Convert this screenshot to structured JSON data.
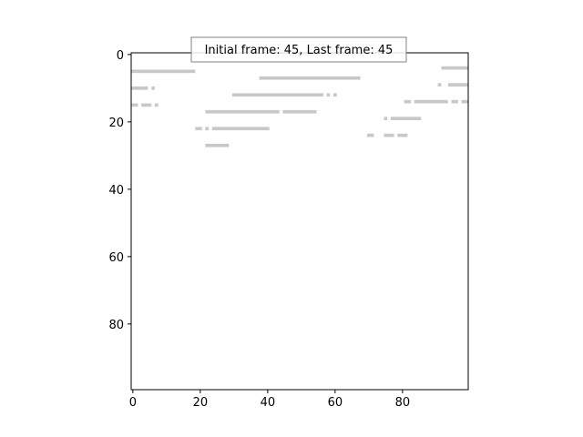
{
  "chart_data": {
    "type": "heatmap",
    "title": "",
    "xlabel": "",
    "ylabel": "",
    "xlim": [
      -0.5,
      99.5
    ],
    "ylim": [
      99.5,
      -0.5
    ],
    "grid": false,
    "y_inverted": true,
    "cell_color": "#c8c8c8",
    "background_color": "#ffffff",
    "x_ticks": [
      {
        "value": 0,
        "label": "0"
      },
      {
        "value": 20,
        "label": "20"
      },
      {
        "value": 40,
        "label": "40"
      },
      {
        "value": 60,
        "label": "60"
      },
      {
        "value": 80,
        "label": "80"
      }
    ],
    "y_ticks": [
      {
        "value": 0,
        "label": "0"
      },
      {
        "value": 20,
        "label": "20"
      },
      {
        "value": 40,
        "label": "40"
      },
      {
        "value": 60,
        "label": "60"
      },
      {
        "value": 80,
        "label": "80"
      }
    ],
    "annotation": {
      "text": "Initial frame: 45, Last frame: 45",
      "placement": "top-center"
    },
    "segments": [
      {
        "row": 0,
        "x_start": 47,
        "x_end": 67
      },
      {
        "row": 4,
        "x_start": 92,
        "x_end": 99
      },
      {
        "row": 5,
        "x_start": 0,
        "x_end": 18
      },
      {
        "row": 7,
        "x_start": 38,
        "x_end": 67
      },
      {
        "row": 9,
        "x_start": 91,
        "x_end": 91
      },
      {
        "row": 9,
        "x_start": 94,
        "x_end": 99
      },
      {
        "row": 10,
        "x_start": 0,
        "x_end": 4
      },
      {
        "row": 10,
        "x_start": 6,
        "x_end": 6
      },
      {
        "row": 12,
        "x_start": 30,
        "x_end": 56
      },
      {
        "row": 12,
        "x_start": 58,
        "x_end": 58
      },
      {
        "row": 12,
        "x_start": 60,
        "x_end": 60
      },
      {
        "row": 14,
        "x_start": 81,
        "x_end": 82
      },
      {
        "row": 14,
        "x_start": 84,
        "x_end": 93
      },
      {
        "row": 14,
        "x_start": 95,
        "x_end": 96
      },
      {
        "row": 14,
        "x_start": 98,
        "x_end": 99
      },
      {
        "row": 15,
        "x_start": 0,
        "x_end": 1
      },
      {
        "row": 15,
        "x_start": 3,
        "x_end": 5
      },
      {
        "row": 15,
        "x_start": 7,
        "x_end": 7
      },
      {
        "row": 17,
        "x_start": 22,
        "x_end": 43
      },
      {
        "row": 17,
        "x_start": 45,
        "x_end": 54
      },
      {
        "row": 19,
        "x_start": 75,
        "x_end": 75
      },
      {
        "row": 19,
        "x_start": 77,
        "x_end": 85
      },
      {
        "row": 22,
        "x_start": 19,
        "x_end": 20
      },
      {
        "row": 22,
        "x_start": 22,
        "x_end": 22
      },
      {
        "row": 22,
        "x_start": 24,
        "x_end": 40
      },
      {
        "row": 24,
        "x_start": 70,
        "x_end": 71
      },
      {
        "row": 24,
        "x_start": 75,
        "x_end": 77
      },
      {
        "row": 24,
        "x_start": 79,
        "x_end": 81
      },
      {
        "row": 27,
        "x_start": 22,
        "x_end": 28
      }
    ]
  }
}
